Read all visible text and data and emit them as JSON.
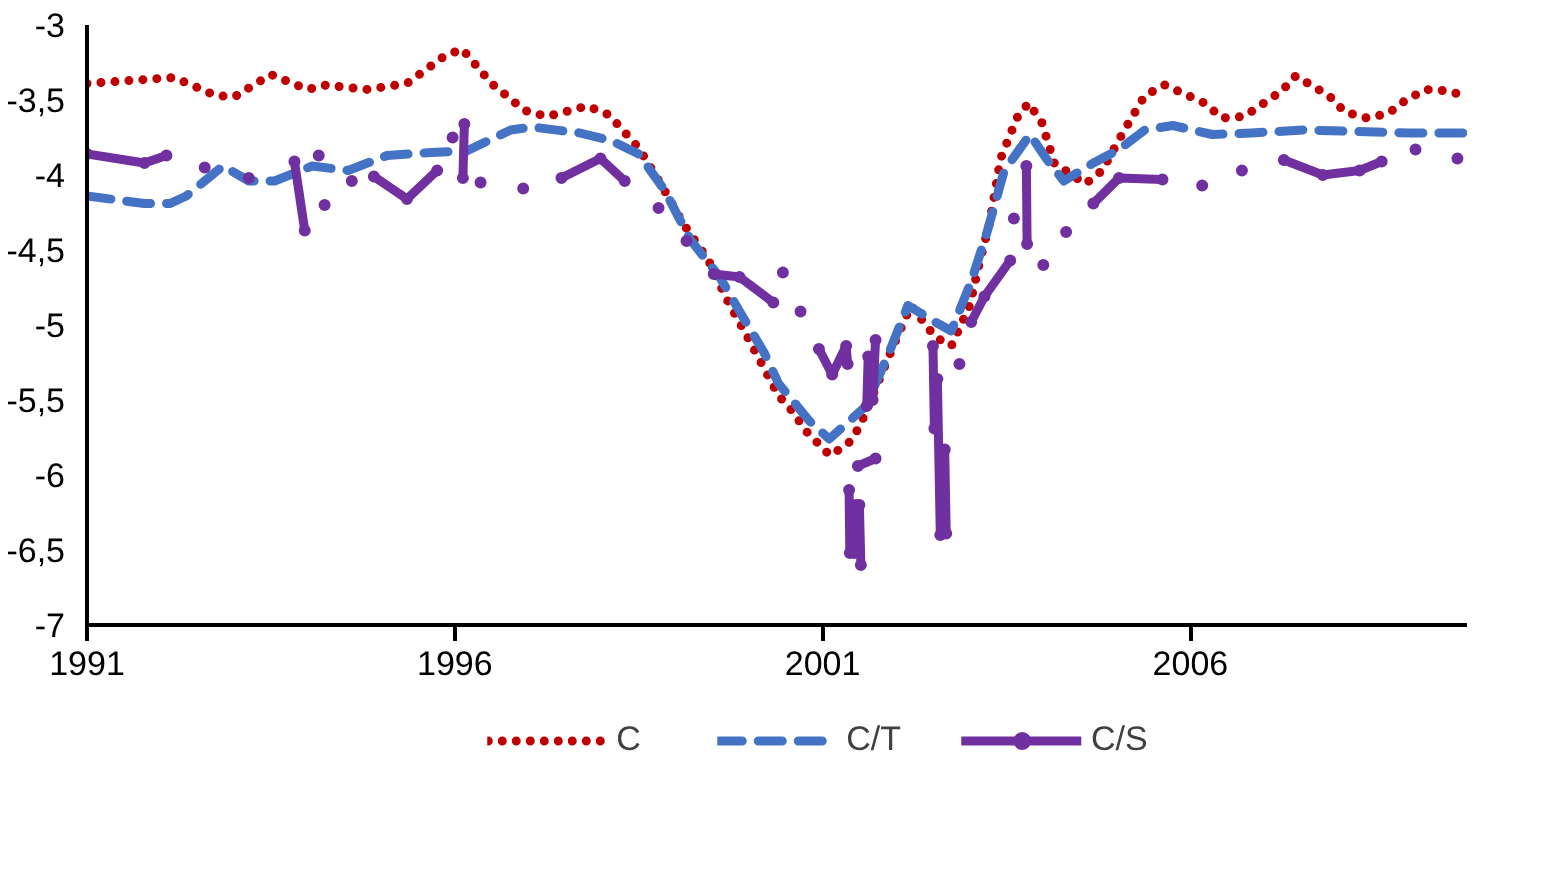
{
  "chart_data": {
    "type": "line",
    "xlim": [
      1991,
      2009.76
    ],
    "xticks": [
      1991,
      1996,
      2001,
      2006
    ],
    "ylim": [
      -7,
      -3
    ],
    "yticks": [
      -7,
      {
        "value": -6.5,
        "label": "-6,5"
      },
      -6,
      {
        "value": -5.5,
        "label": "-5,5"
      },
      -5,
      {
        "value": -4.5,
        "label": "-4,5"
      },
      -4,
      {
        "value": -3.5,
        "label": "-3,5"
      },
      -3
    ],
    "grid": false,
    "legend": "bottom",
    "series": [
      {
        "name": "C",
        "color": "#c00000",
        "line_style": "dotted",
        "marker": "none",
        "x": [
          1991.0,
          1992.18,
          1992.75,
          1993.0,
          1993.5,
          1994.0,
          1994.25,
          1994.8,
          1995.35,
          1995.85,
          1996.1,
          1996.5,
          1996.95,
          1997.25,
          1997.8,
          1998.1,
          1998.5,
          1998.8,
          1999.1,
          1999.45,
          1999.7,
          1999.98,
          2000.4,
          2000.6,
          2000.76,
          2001.1,
          2001.35,
          2001.5,
          2001.97,
          2002.2,
          2002.53,
          2002.75,
          2003.0,
          2003.13,
          2003.27,
          2003.42,
          2003.64,
          2003.8,
          2003.98,
          2004.15,
          2004.57,
          2004.8,
          2005.08,
          2005.38,
          2005.65,
          2006.19,
          2006.43,
          2006.73,
          2007.24,
          2007.43,
          2007.88,
          2008.1,
          2008.4,
          2008.69,
          2008.93,
          2009.2,
          2009.52,
          2009.76
        ],
        "values": [
          -3.39,
          -3.35,
          -3.47,
          -3.48,
          -3.33,
          -3.43,
          -3.4,
          -3.43,
          -3.39,
          -3.21,
          -3.16,
          -3.39,
          -3.57,
          -3.61,
          -3.54,
          -3.6,
          -3.82,
          -4.06,
          -4.32,
          -4.57,
          -4.83,
          -5.08,
          -5.47,
          -5.58,
          -5.7,
          -5.87,
          -5.79,
          -5.68,
          -5.13,
          -4.87,
          -5.08,
          -5.14,
          -4.87,
          -4.59,
          -4.32,
          -3.89,
          -3.62,
          -3.52,
          -3.65,
          -3.92,
          -4.06,
          -3.97,
          -3.72,
          -3.47,
          -3.4,
          -3.52,
          -3.62,
          -3.61,
          -3.44,
          -3.34,
          -3.47,
          -3.58,
          -3.62,
          -3.59,
          -3.5,
          -3.43,
          -3.44,
          -3.48
        ]
      },
      {
        "name": "C/T",
        "color": "#4472c4",
        "line_style": "dashed",
        "marker": "none",
        "x": [
          1991.0,
          1991.78,
          1992.13,
          1992.35,
          1992.85,
          1993.2,
          1993.55,
          1994.06,
          1994.55,
          1995.08,
          1995.68,
          1996.16,
          1996.76,
          1997.05,
          1997.7,
          1998.12,
          1998.5,
          1998.85,
          1999.2,
          1999.6,
          1999.92,
          2000.2,
          2000.4,
          2000.82,
          2001.09,
          2001.32,
          2001.59,
          2001.89,
          2002.16,
          2002.53,
          2002.75,
          2003.02,
          2003.23,
          2003.47,
          2003.82,
          2004.04,
          2004.28,
          2004.68,
          2005.03,
          2005.38,
          2005.76,
          2006.3,
          2006.83,
          2007.53,
          2008.26,
          2008.98,
          2009.76
        ],
        "values": [
          -4.14,
          -4.19,
          -4.19,
          -4.14,
          -3.94,
          -4.04,
          -4.04,
          -3.94,
          -3.97,
          -3.87,
          -3.85,
          -3.84,
          -3.7,
          -3.68,
          -3.72,
          -3.77,
          -3.86,
          -4.1,
          -4.43,
          -4.68,
          -4.95,
          -5.18,
          -5.39,
          -5.64,
          -5.76,
          -5.66,
          -5.54,
          -5.2,
          -4.87,
          -4.98,
          -5.04,
          -4.71,
          -4.39,
          -3.97,
          -3.73,
          -3.89,
          -4.04,
          -3.92,
          -3.83,
          -3.7,
          -3.67,
          -3.73,
          -3.72,
          -3.7,
          -3.71,
          -3.72,
          -3.72
        ]
      },
      {
        "name": "C/S",
        "color": "#7030a0",
        "line_style": "solid",
        "marker": "circle",
        "x": [
          1991.0,
          1991.78,
          1992.08,
          null,
          1992.6,
          null,
          1993.2,
          null,
          1993.82,
          1993.96,
          null,
          1994.15,
          null,
          1994.23,
          null,
          1994.6,
          null,
          1994.9,
          1995.35,
          1995.76,
          null,
          1995.97,
          null,
          1996.13,
          1996.11,
          null,
          1996.35,
          null,
          1996.93,
          null,
          1997.45,
          1997.98,
          1998.31,
          null,
          1998.77,
          null,
          1999.15,
          null,
          1999.52,
          1999.87,
          2000.33,
          null,
          2000.46,
          null,
          2000.7,
          null,
          2000.95,
          2001.13,
          2001.32,
          2001.34,
          null,
          2001.36,
          2001.37,
          2001.43,
          2001.45,
          2001.5,
          2001.52,
          null,
          2001.48,
          2001.72,
          null,
          2001.6,
          2001.62,
          2001.68,
          2001.72,
          null,
          2002.5,
          2002.52,
          2002.56,
          2002.6,
          2002.66,
          2002.68,
          null,
          2002.86,
          null,
          2003.02,
          2003.2,
          2003.55,
          null,
          2003.6,
          null,
          2003.77,
          2003.78,
          null,
          2004.0,
          null,
          2004.31,
          null,
          2004.68,
          2005.03,
          2005.62,
          null,
          2006.16,
          null,
          2006.7,
          null,
          2007.27,
          2007.8,
          2008.3,
          2008.6,
          null,
          2009.06,
          null,
          2009.63
        ],
        "values": [
          -3.86,
          -3.92,
          -3.87,
          null,
          -3.95,
          null,
          -4.02,
          null,
          -3.91,
          -4.37,
          null,
          -3.87,
          null,
          -4.2,
          null,
          -4.04,
          null,
          -4.01,
          -4.16,
          -3.97,
          null,
          -3.75,
          null,
          -3.66,
          -4.02,
          null,
          -4.05,
          null,
          -4.09,
          null,
          -4.02,
          -3.89,
          -4.04,
          null,
          -4.22,
          null,
          -4.44,
          null,
          -4.66,
          -4.68,
          -4.85,
          null,
          -4.65,
          null,
          -4.91,
          null,
          -5.16,
          -5.33,
          -5.14,
          -5.26,
          null,
          -6.1,
          -6.52,
          -6.52,
          -6.2,
          -6.2,
          -6.6,
          null,
          -5.94,
          -5.89,
          null,
          -5.54,
          -5.21,
          -5.5,
          -5.1,
          null,
          -5.14,
          -5.69,
          -5.36,
          -6.4,
          -5.83,
          -6.39,
          null,
          -5.26,
          null,
          -4.98,
          -4.81,
          -4.57,
          null,
          -4.29,
          null,
          -3.94,
          -4.46,
          null,
          -4.6,
          null,
          -4.38,
          null,
          -4.19,
          -4.02,
          -4.03,
          null,
          -4.07,
          null,
          -3.97,
          null,
          -3.9,
          -4.0,
          -3.97,
          -3.91,
          null,
          -3.83,
          null,
          -3.89
        ]
      }
    ]
  }
}
